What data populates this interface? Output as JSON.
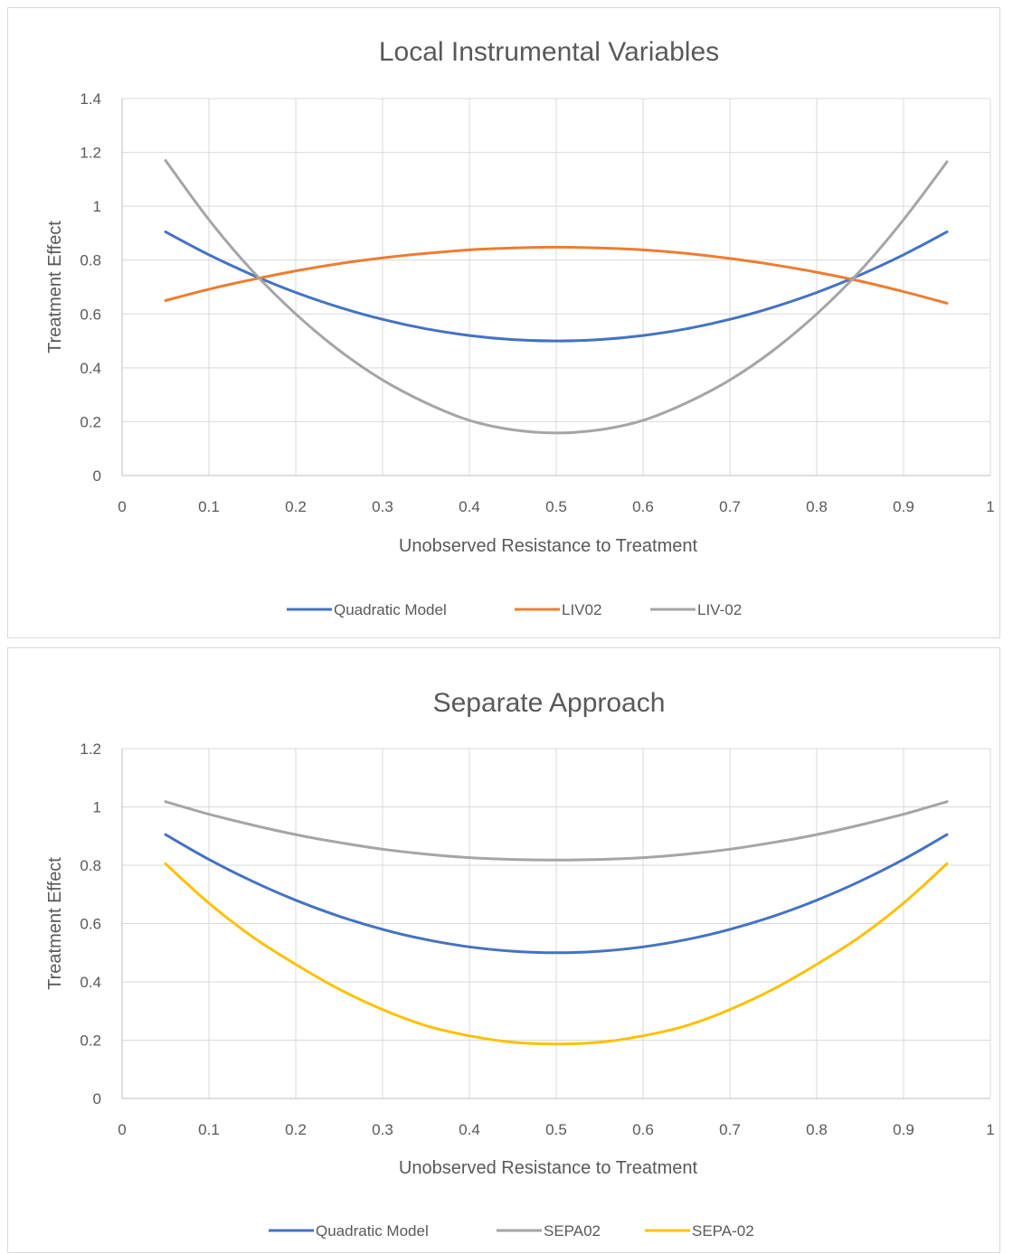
{
  "chart_data": [
    {
      "type": "line",
      "title": "Local Instrumental Variables",
      "xlabel": "Unobserved Resistance to Treatment",
      "ylabel": "Treatment Effect",
      "xlim": [
        0,
        1
      ],
      "ylim": [
        0,
        1.4
      ],
      "x_ticks": [
        "0",
        "0.1",
        "0.2",
        "0.3",
        "0.4",
        "0.5",
        "0.6",
        "0.7",
        "0.8",
        "0.9",
        "1"
      ],
      "y_ticks": [
        "0",
        "0.2",
        "0.4",
        "0.6",
        "0.8",
        "1",
        "1.2",
        "1.4"
      ],
      "grid": true,
      "legend_position": "bottom",
      "x": [
        0.05,
        0.1,
        0.15,
        0.2,
        0.25,
        0.3,
        0.35,
        0.4,
        0.45,
        0.5,
        0.55,
        0.6,
        0.65,
        0.7,
        0.75,
        0.8,
        0.85,
        0.9,
        0.95
      ],
      "series": [
        {
          "name": "Quadratic Model",
          "color": "#4472C4",
          "values": [
            0.905,
            0.82,
            0.745,
            0.68,
            0.625,
            0.58,
            0.545,
            0.52,
            0.505,
            0.5,
            0.505,
            0.52,
            0.545,
            0.58,
            0.625,
            0.68,
            0.745,
            0.82,
            0.905
          ]
        },
        {
          "name": "LIV02",
          "color": "#ED7D31",
          "values": [
            0.65,
            0.692,
            0.728,
            0.76,
            0.787,
            0.808,
            0.825,
            0.838,
            0.845,
            0.848,
            0.845,
            0.838,
            0.825,
            0.806,
            0.783,
            0.755,
            0.722,
            0.683,
            0.64
          ]
        },
        {
          "name": "LIV-02",
          "color": "#A5A5A5",
          "values": [
            1.17,
            0.95,
            0.76,
            0.6,
            0.465,
            0.355,
            0.27,
            0.205,
            0.17,
            0.158,
            0.17,
            0.205,
            0.27,
            0.355,
            0.465,
            0.6,
            0.76,
            0.95,
            1.165
          ]
        }
      ]
    },
    {
      "type": "line",
      "title": "Separate Approach",
      "xlabel": "Unobserved Resistance to Treatment",
      "ylabel": "Treatment Effect",
      "xlim": [
        0,
        1
      ],
      "ylim": [
        0,
        1.2
      ],
      "x_ticks": [
        "0",
        "0.1",
        "0.2",
        "0.3",
        "0.4",
        "0.5",
        "0.6",
        "0.7",
        "0.8",
        "0.9",
        "1"
      ],
      "y_ticks": [
        "0",
        "0.2",
        "0.4",
        "0.6",
        "0.8",
        "1",
        "1.2"
      ],
      "grid": true,
      "legend_position": "bottom",
      "x": [
        0.05,
        0.1,
        0.15,
        0.2,
        0.25,
        0.3,
        0.35,
        0.4,
        0.45,
        0.5,
        0.55,
        0.6,
        0.65,
        0.7,
        0.75,
        0.8,
        0.85,
        0.9,
        0.95
      ],
      "series": [
        {
          "name": "Quadratic Model",
          "color": "#4472C4",
          "values": [
            0.905,
            0.82,
            0.745,
            0.68,
            0.625,
            0.58,
            0.545,
            0.52,
            0.505,
            0.5,
            0.505,
            0.52,
            0.545,
            0.58,
            0.625,
            0.68,
            0.745,
            0.82,
            0.905
          ]
        },
        {
          "name": "SEPA02",
          "color": "#A5A5A5",
          "values": [
            1.018,
            0.975,
            0.938,
            0.905,
            0.878,
            0.855,
            0.838,
            0.826,
            0.82,
            0.818,
            0.82,
            0.826,
            0.838,
            0.855,
            0.878,
            0.905,
            0.938,
            0.975,
            1.018
          ]
        },
        {
          "name": "SEPA-02",
          "color": "#FFC000",
          "values": [
            0.805,
            0.67,
            0.555,
            0.46,
            0.375,
            0.305,
            0.25,
            0.215,
            0.193,
            0.187,
            0.193,
            0.215,
            0.25,
            0.305,
            0.375,
            0.46,
            0.555,
            0.67,
            0.805
          ]
        }
      ]
    }
  ]
}
